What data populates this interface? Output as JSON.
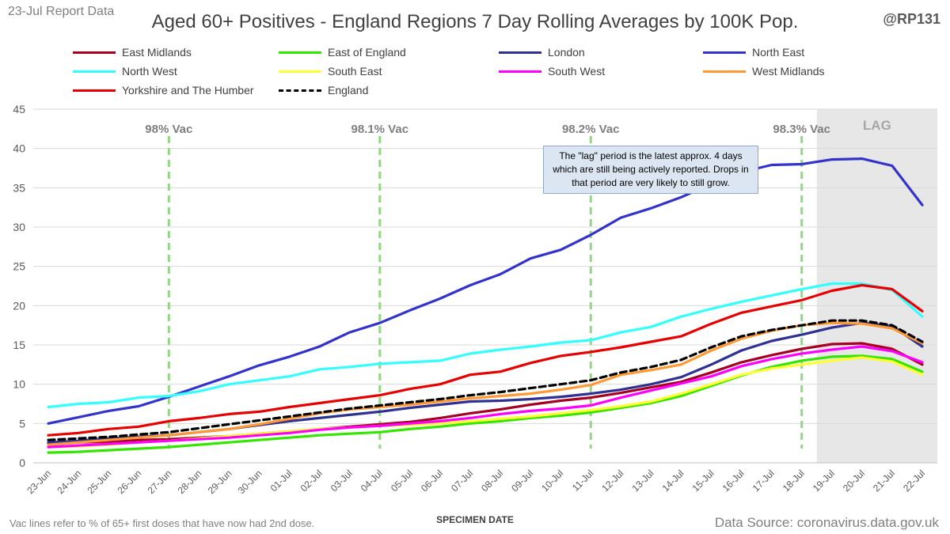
{
  "header": {
    "report_label": "23-Jul Report Data",
    "handle": "@RP131",
    "title": "Aged 60+ Positives - England Regions 7 Day Rolling Averages by 100K Pop."
  },
  "footer": {
    "note": "Vac lines refer to % of 65+ first doses that have now had 2nd dose.",
    "source": "Data Source: coronavirus.data.gov.uk"
  },
  "annotation": "The \"lag\" period is the latest approx. 4 days which are still being actively reported. Drops in that period are very likely to still grow.",
  "chart_data": {
    "type": "line",
    "title": "Aged 60+ Positives - England Regions 7 Day Rolling Averages by 100K Pop.",
    "xlabel": "SPECIMEN DATE",
    "ylabel": "",
    "ylim": [
      0,
      45
    ],
    "yticks": [
      "0",
      "5",
      "10",
      "15",
      "20",
      "25",
      "30",
      "35",
      "40",
      "45"
    ],
    "grid": true,
    "legend_position": "top",
    "categories": [
      "23-Jun",
      "24-Jun",
      "25-Jun",
      "26-Jun",
      "27-Jun",
      "28-Jun",
      "29-Jun",
      "30-Jun",
      "01-Jul",
      "02-Jul",
      "03-Jul",
      "04-Jul",
      "05-Jul",
      "06-Jul",
      "07-Jul",
      "08-Jul",
      "09-Jul",
      "10-Jul",
      "11-Jul",
      "12-Jul",
      "13-Jul",
      "14-Jul",
      "15-Jul",
      "16-Jul",
      "17-Jul",
      "18-Jul",
      "19-Jul",
      "20-Jul",
      "21-Jul",
      "22-Jul"
    ],
    "lag_region": {
      "start": "19-Jul",
      "end": "22-Jul",
      "label": "LAG",
      "color": "#e7e7e7"
    },
    "vac_lines": [
      {
        "x": "27-Jun",
        "label": "98% Vac"
      },
      {
        "x": "04-Jul",
        "label": "98.1% Vac"
      },
      {
        "x": "11-Jul",
        "label": "98.2% Vac"
      },
      {
        "x": "18-Jul",
        "label": "98.3% Vac"
      }
    ],
    "series": [
      {
        "name": "East Midlands",
        "color": "#a50021",
        "dash": false,
        "values": [
          2.4,
          2.6,
          2.7,
          2.9,
          3.0,
          3.2,
          3.4,
          3.7,
          4.0,
          4.3,
          4.6,
          4.9,
          5.2,
          5.7,
          6.3,
          6.8,
          7.4,
          7.9,
          8.3,
          8.9,
          9.6,
          10.3,
          11.5,
          12.8,
          13.7,
          14.5,
          15.1,
          15.2,
          14.5,
          12.5
        ]
      },
      {
        "name": "East of England",
        "color": "#33e600",
        "dash": false,
        "values": [
          1.3,
          1.4,
          1.6,
          1.8,
          2.0,
          2.3,
          2.6,
          2.9,
          3.2,
          3.5,
          3.7,
          3.9,
          4.3,
          4.6,
          5.0,
          5.3,
          5.7,
          6.0,
          6.4,
          7.0,
          7.6,
          8.5,
          9.8,
          11.1,
          12.2,
          13.0,
          13.5,
          13.6,
          13.2,
          11.6
        ]
      },
      {
        "name": "London",
        "color": "#2e3192",
        "dash": false,
        "values": [
          2.6,
          2.8,
          3.1,
          3.3,
          3.5,
          3.9,
          4.3,
          4.8,
          5.3,
          5.7,
          6.1,
          6.5,
          7.0,
          7.4,
          7.8,
          7.9,
          8.1,
          8.4,
          8.8,
          9.3,
          10.0,
          10.9,
          12.5,
          14.3,
          15.5,
          16.3,
          17.2,
          17.8,
          17.4,
          14.8
        ]
      },
      {
        "name": "North East",
        "color": "#3333cc",
        "dash": false,
        "values": [
          5.0,
          5.8,
          6.6,
          7.2,
          8.4,
          9.7,
          11.0,
          12.4,
          13.5,
          14.8,
          16.6,
          17.8,
          19.4,
          20.9,
          22.6,
          24.0,
          26.0,
          27.1,
          29.0,
          31.2,
          32.4,
          33.8,
          35.5,
          37.0,
          37.9,
          38.0,
          38.6,
          38.7,
          37.8,
          32.8
        ]
      },
      {
        "name": "North West",
        "color": "#33ffff",
        "dash": false,
        "values": [
          7.1,
          7.5,
          7.7,
          8.3,
          8.5,
          9.1,
          10.0,
          10.5,
          11.0,
          11.9,
          12.2,
          12.6,
          12.8,
          13.0,
          13.9,
          14.4,
          14.8,
          15.3,
          15.6,
          16.6,
          17.3,
          18.6,
          19.6,
          20.5,
          21.3,
          22.1,
          22.8,
          22.8,
          22.0,
          18.6
        ]
      },
      {
        "name": "South East",
        "color": "#ffff33",
        "dash": false,
        "values": [
          2.0,
          2.1,
          2.3,
          2.6,
          2.8,
          3.1,
          3.4,
          3.7,
          4.0,
          4.3,
          4.5,
          4.7,
          4.8,
          5.0,
          5.3,
          5.6,
          5.9,
          6.3,
          6.7,
          7.2,
          7.8,
          8.8,
          10.0,
          11.2,
          12.0,
          12.5,
          13.0,
          13.4,
          12.9,
          11.2
        ]
      },
      {
        "name": "South West",
        "color": "#ff00ff",
        "dash": false,
        "values": [
          2.0,
          2.2,
          2.4,
          2.6,
          2.8,
          3.0,
          3.2,
          3.5,
          3.8,
          4.2,
          4.5,
          4.7,
          5.0,
          5.3,
          5.7,
          6.2,
          6.6,
          6.9,
          7.3,
          8.3,
          9.2,
          10.1,
          11.0,
          12.3,
          13.2,
          13.9,
          14.4,
          14.8,
          14.2,
          12.8
        ]
      },
      {
        "name": "West Midlands",
        "color": "#ff9933",
        "dash": false,
        "values": [
          2.3,
          2.6,
          2.9,
          3.2,
          3.5,
          3.9,
          4.3,
          4.9,
          5.6,
          6.3,
          6.8,
          7.1,
          7.4,
          7.8,
          8.2,
          8.5,
          8.8,
          9.3,
          9.9,
          11.2,
          11.8,
          12.5,
          14.3,
          15.8,
          16.8,
          17.5,
          17.8,
          17.7,
          17.1,
          15.2
        ]
      },
      {
        "name": "Yorkshire and The Humber",
        "color": "#e60000",
        "dash": false,
        "values": [
          3.5,
          3.8,
          4.3,
          4.6,
          5.3,
          5.7,
          6.2,
          6.5,
          7.1,
          7.6,
          8.1,
          8.6,
          9.4,
          10.0,
          11.2,
          11.6,
          12.7,
          13.6,
          14.1,
          14.7,
          15.4,
          16.1,
          17.7,
          19.1,
          19.9,
          20.7,
          21.9,
          22.6,
          22.1,
          19.3
        ]
      },
      {
        "name": "England",
        "color": "#000000",
        "dash": true,
        "values": [
          2.9,
          3.1,
          3.3,
          3.6,
          3.9,
          4.4,
          4.9,
          5.4,
          5.9,
          6.4,
          6.9,
          7.3,
          7.7,
          8.1,
          8.6,
          9.0,
          9.5,
          10.0,
          10.5,
          11.5,
          12.2,
          13.1,
          14.7,
          16.1,
          16.9,
          17.5,
          18.1,
          18.1,
          17.5,
          15.4
        ]
      }
    ]
  }
}
